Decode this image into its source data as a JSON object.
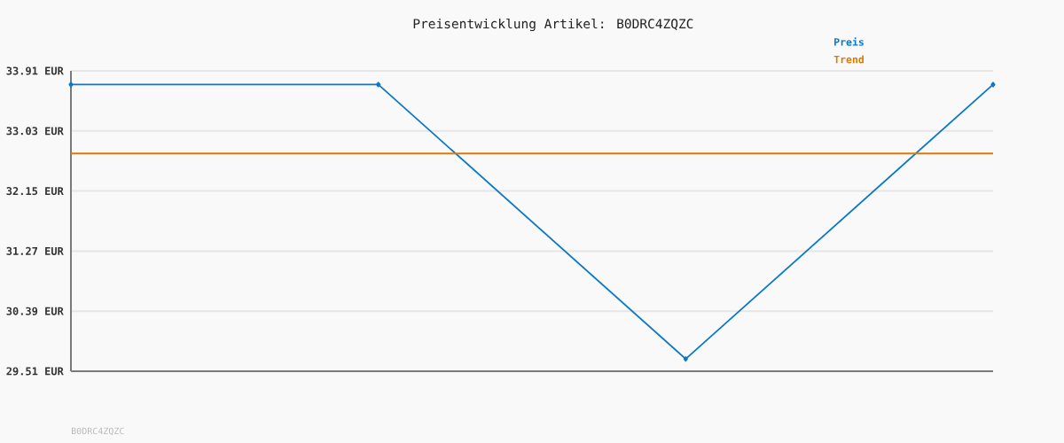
{
  "chart_data": {
    "type": "line",
    "title": "Preisentwicklung Artikel: B0DRC4ZQZC",
    "annotations": [
      "B0DRC4ZQZC"
    ],
    "categories": [
      null,
      null,
      null,
      null
    ],
    "series": [
      {
        "name": "Preis",
        "color": "#0b78c9",
        "values": [
          33.71,
          33.71,
          29.69,
          33.71
        ],
        "marker": "diamond"
      },
      {
        "name": "Trend",
        "color": "#dc7a00",
        "values": [
          32.7,
          32.7,
          32.7,
          32.7
        ],
        "marker": "none"
      }
    ],
    "ylim": [
      29.51,
      33.91
    ],
    "yticks": [
      {
        "value": 29.51,
        "label": "29.51 EUR"
      },
      {
        "value": 30.39,
        "label": "30.39 EUR"
      },
      {
        "value": 31.27,
        "label": "31.27 EUR"
      },
      {
        "value": 32.15,
        "label": "32.15 EUR"
      },
      {
        "value": 33.03,
        "label": "33.03 EUR"
      },
      {
        "value": 33.91,
        "label": "33.91 EUR"
      }
    ],
    "grid": "y",
    "legend": "top right"
  }
}
